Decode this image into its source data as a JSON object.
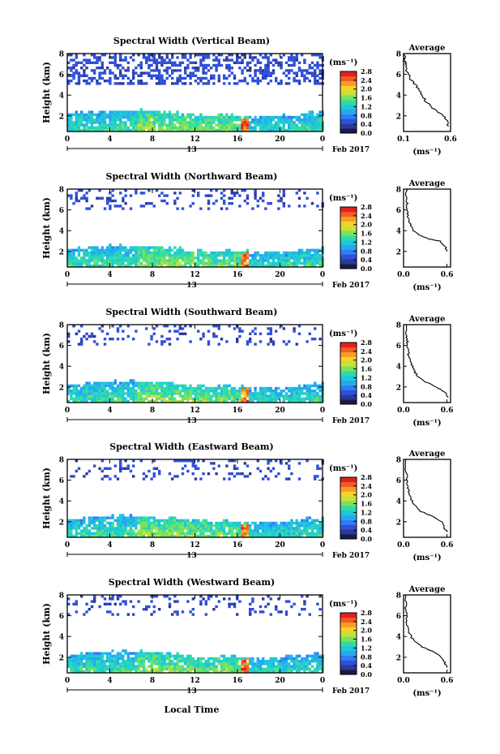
{
  "figure": {
    "xlabel": "Local Time",
    "date_label": "Feb 2017",
    "day_label": "13",
    "avg_title": "Average",
    "unit_label": "(ms⁻¹)",
    "ylabel": "Height (km)",
    "colormap": [
      "#1a1a4a",
      "#2b3a9a",
      "#3050d8",
      "#2f7ef2",
      "#25a8f0",
      "#1ec8d8",
      "#2fdca8",
      "#7ae25a",
      "#c8e03a",
      "#f4d22a",
      "#f79c26",
      "#f25c22",
      "#e02020"
    ]
  },
  "chart_data": [
    {
      "type": "heatmap",
      "title": "Spectral Width (Vertical Beam)",
      "ylabel": "Height (km)",
      "xlabel": "",
      "x_ticks": [
        "0",
        "4",
        "8",
        "12",
        "16",
        "20",
        "0"
      ],
      "y_ticks": [
        "2",
        "4",
        "6",
        "8"
      ],
      "xlim": [
        0,
        24
      ],
      "ylim": [
        0.5,
        8
      ],
      "colorbar_ticks": [
        "0.0",
        "0.4",
        "0.8",
        "1.2",
        "1.6",
        "2.0",
        "2.4",
        "2.8"
      ],
      "colorbar_range": [
        0,
        2.8
      ],
      "average": {
        "title": "Average",
        "x_ticks": [
          "0.1",
          "0.6"
        ],
        "xlim": [
          0.1,
          0.6
        ],
        "x": [
          0.58,
          0.56,
          0.52,
          0.44,
          0.38,
          0.33,
          0.3,
          0.27,
          0.22,
          0.18,
          0.15,
          0.13,
          0.12,
          0.11,
          0.11,
          0.11
        ],
        "y": [
          1.0,
          1.5,
          2.0,
          2.5,
          3.0,
          3.5,
          4.0,
          4.5,
          5.0,
          5.5,
          6.0,
          6.5,
          7.0,
          7.3,
          7.6,
          8.0
        ]
      }
    },
    {
      "type": "heatmap",
      "title": "Spectral Width (Northward Beam)",
      "ylabel": "Height (km)",
      "xlabel": "",
      "x_ticks": [
        "0",
        "4",
        "8",
        "12",
        "16",
        "20",
        "0"
      ],
      "y_ticks": [
        "2",
        "4",
        "6",
        "8"
      ],
      "xlim": [
        0,
        24
      ],
      "ylim": [
        0.5,
        8
      ],
      "colorbar_ticks": [
        "0.0",
        "0.4",
        "0.8",
        "1.2",
        "1.6",
        "2.0",
        "2.4",
        "2.8"
      ],
      "colorbar_range": [
        0,
        2.8
      ],
      "average": {
        "title": "Average",
        "x_ticks": [
          "0.0",
          "0.6"
        ],
        "xlim": [
          0.0,
          0.65
        ],
        "x": [
          0.6,
          0.58,
          0.5,
          0.35,
          0.22,
          0.14,
          0.1,
          0.08,
          0.06,
          0.05,
          0.05,
          0.04,
          0.04,
          0.04
        ],
        "y": [
          2.0,
          2.5,
          3.0,
          3.2,
          3.6,
          4.0,
          4.5,
          5.0,
          5.5,
          6.0,
          6.5,
          7.0,
          7.5,
          8.0
        ]
      }
    },
    {
      "type": "heatmap",
      "title": "Spectral Width (Southward Beam)",
      "ylabel": "Height (km)",
      "xlabel": "",
      "x_ticks": [
        "0",
        "4",
        "8",
        "12",
        "16",
        "20",
        "0"
      ],
      "y_ticks": [
        "2",
        "4",
        "6",
        "8"
      ],
      "xlim": [
        0,
        24
      ],
      "ylim": [
        0.5,
        8
      ],
      "colorbar_ticks": [
        "0.0",
        "0.4",
        "0.8",
        "1.2",
        "1.6",
        "2.0",
        "2.4",
        "2.8"
      ],
      "colorbar_range": [
        0,
        2.8
      ],
      "average": {
        "title": "Average",
        "x_ticks": [
          "0.0",
          "0.6"
        ],
        "xlim": [
          0.0,
          0.65
        ],
        "x": [
          0.62,
          0.58,
          0.45,
          0.3,
          0.2,
          0.15,
          0.12,
          0.09,
          0.07,
          0.06,
          0.05,
          0.05,
          0.04,
          0.04
        ],
        "y": [
          1.0,
          1.5,
          2.0,
          2.5,
          3.0,
          3.5,
          4.0,
          4.5,
          5.0,
          5.5,
          6.0,
          6.5,
          7.0,
          8.0
        ]
      }
    },
    {
      "type": "heatmap",
      "title": "Spectral Width (Eastward Beam)",
      "ylabel": "Height (km)",
      "xlabel": "",
      "x_ticks": [
        "0",
        "4",
        "8",
        "12",
        "16",
        "20",
        "0"
      ],
      "y_ticks": [
        "2",
        "4",
        "6",
        "8"
      ],
      "xlim": [
        0,
        24
      ],
      "ylim": [
        0.5,
        8
      ],
      "colorbar_ticks": [
        "0.0",
        "0.4",
        "0.8",
        "1.2",
        "1.6",
        "2.0",
        "2.4",
        "2.8"
      ],
      "colorbar_range": [
        0,
        2.8
      ],
      "average": {
        "title": "Average",
        "x_ticks": [
          "0.0",
          "0.6"
        ],
        "xlim": [
          0.0,
          0.65
        ],
        "x": [
          0.6,
          0.56,
          0.52,
          0.4,
          0.24,
          0.16,
          0.12,
          0.09,
          0.07,
          0.05,
          0.04,
          0.04,
          0.03,
          0.03
        ],
        "y": [
          1.0,
          1.5,
          2.0,
          2.5,
          3.0,
          3.5,
          4.0,
          4.5,
          5.0,
          5.5,
          6.0,
          6.5,
          7.0,
          8.0
        ]
      }
    },
    {
      "type": "heatmap",
      "title": "Spectral Width (Westward Beam)",
      "ylabel": "Height (km)",
      "xlabel": "Local Time",
      "x_ticks": [
        "0",
        "4",
        "8",
        "12",
        "16",
        "20",
        "0"
      ],
      "y_ticks": [
        "2",
        "4",
        "6",
        "8"
      ],
      "xlim": [
        0,
        24
      ],
      "ylim": [
        0.5,
        8
      ],
      "colorbar_ticks": [
        "0.0",
        "0.4",
        "0.8",
        "1.2",
        "1.6",
        "2.0",
        "2.4",
        "2.8"
      ],
      "colorbar_range": [
        0,
        2.8
      ],
      "average": {
        "title": "Average",
        "x_ticks": [
          "0.0",
          "0.6"
        ],
        "xlim": [
          0.0,
          0.65
        ],
        "x": [
          0.6,
          0.57,
          0.52,
          0.42,
          0.26,
          0.16,
          0.1,
          0.07,
          0.05,
          0.04,
          0.04,
          0.03,
          0.03,
          0.03
        ],
        "y": [
          1.0,
          1.5,
          2.0,
          2.5,
          3.0,
          3.5,
          4.0,
          4.5,
          5.0,
          5.5,
          6.0,
          6.5,
          7.0,
          8.0
        ]
      }
    }
  ]
}
